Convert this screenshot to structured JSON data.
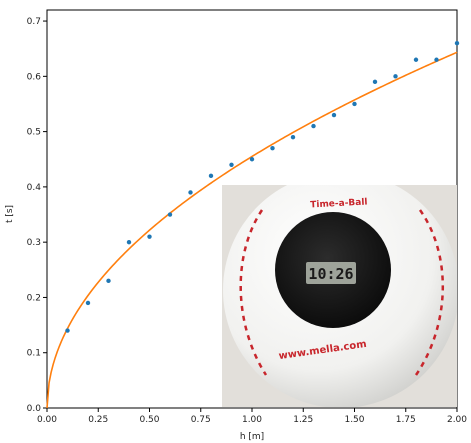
{
  "chart_data": {
    "type": "scatter",
    "xlabel": "h [m]",
    "ylabel": "t [s]",
    "xlim": [
      0.0,
      2.0
    ],
    "ylim": [
      0.0,
      0.72
    ],
    "x_ticks": [
      "0.00",
      "0.25",
      "0.50",
      "0.75",
      "1.00",
      "1.25",
      "1.50",
      "1.75",
      "2.00"
    ],
    "y_ticks": [
      "0.0",
      "0.1",
      "0.2",
      "0.3",
      "0.4",
      "0.5",
      "0.6",
      "0.7"
    ],
    "grid": false,
    "series": [
      {
        "kind": "scatter",
        "color": "#1f77b4",
        "x": [
          0.1,
          0.2,
          0.3,
          0.4,
          0.5,
          0.6,
          0.7,
          0.8,
          0.9,
          1.0,
          1.1,
          1.2,
          1.3,
          1.4,
          1.5,
          1.6,
          1.7,
          1.8,
          1.9,
          2.0
        ],
        "y": [
          0.14,
          0.19,
          0.23,
          0.3,
          0.31,
          0.35,
          0.39,
          0.42,
          0.44,
          0.45,
          0.47,
          0.49,
          0.51,
          0.53,
          0.55,
          0.59,
          0.6,
          0.63,
          0.63,
          0.66
        ]
      },
      {
        "kind": "line",
        "color": "#ff7f0e",
        "fit": "sqrt",
        "coefficient": 0.455
      }
    ],
    "inset": {
      "ball_brand": "Time-a-Ball",
      "ball_url": "www.mella.com",
      "display_reading": "10:26"
    }
  }
}
